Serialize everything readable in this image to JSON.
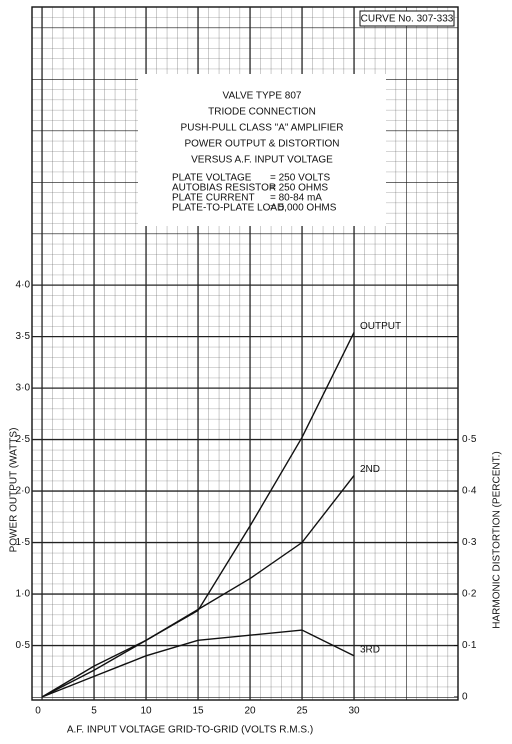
{
  "chart_data": {
    "type": "line",
    "curve_number": "CURVE No. 307-333",
    "info_box": {
      "title_lines": [
        "VALVE TYPE 807",
        "TRIODE CONNECTION",
        "PUSH-PULL CLASS \"A\" AMPLIFIER",
        "POWER OUTPUT & DISTORTION",
        "VERSUS A.F. INPUT VOLTAGE"
      ],
      "conditions": [
        [
          "PLATE VOLTAGE",
          "= 250 VOLTS"
        ],
        [
          "AUTOBIAS RESISTOR",
          "= 250 OHMS"
        ],
        [
          "PLATE CURRENT",
          "= 80-84 mA"
        ],
        [
          "PLATE-TO-PLATE LOAD",
          "= 5,000 OHMS"
        ]
      ]
    },
    "x_label": "A.F. INPUT VOLTAGE  GRID-TO-GRID  (VOLTS R.M.S.)",
    "y_label": "POWER OUTPUT  (WATTS)",
    "y2_label": "HARMONIC DISTORTION  (PERCENT.)",
    "x": [
      0,
      5,
      10,
      15,
      20,
      25,
      30
    ],
    "series": [
      {
        "name": "OUTPUT",
        "color": "#111111",
        "values": [
          0,
          0.26,
          0.55,
          0.84,
          1.66,
          2.52,
          3.54
        ]
      },
      {
        "name": "2ND",
        "color": "#111111",
        "axis": "y2",
        "values": [
          0,
          0.06,
          0.11,
          0.17,
          0.23,
          0.3,
          0.43
        ]
      },
      {
        "name": "3RD",
        "color": "#111111",
        "axis": "y2",
        "values": [
          0,
          0.04,
          0.08,
          0.11,
          0.12,
          0.13,
          0.08
        ]
      }
    ],
    "xlim": [
      0,
      40
    ],
    "xticks": [
      0,
      5,
      10,
      15,
      20,
      25,
      30
    ],
    "ylim": [
      0,
      6.7
    ],
    "yticks": [
      {
        "value": 0.5,
        "label": "0·5"
      },
      {
        "value": 1,
        "label": "1·0"
      },
      {
        "value": 1.5,
        "label": "1·5"
      },
      {
        "value": 2,
        "label": "2·0"
      },
      {
        "value": 2.5,
        "label": "2·5"
      },
      {
        "value": 3,
        "label": "3·0"
      },
      {
        "value": 3.5,
        "label": "3·5"
      },
      {
        "value": 4,
        "label": "4·0"
      }
    ],
    "y2lim": [
      0,
      1.34
    ],
    "y2ticks": [
      0,
      {
        "value": 0.1,
        "label": "0·1"
      },
      {
        "value": 0.2,
        "label": "0·2"
      },
      {
        "value": 0.3,
        "label": "0·3"
      },
      {
        "value": 0.4,
        "label": "0·4"
      },
      {
        "value": 0.5,
        "label": "0·5"
      }
    ],
    "grid": true
  }
}
